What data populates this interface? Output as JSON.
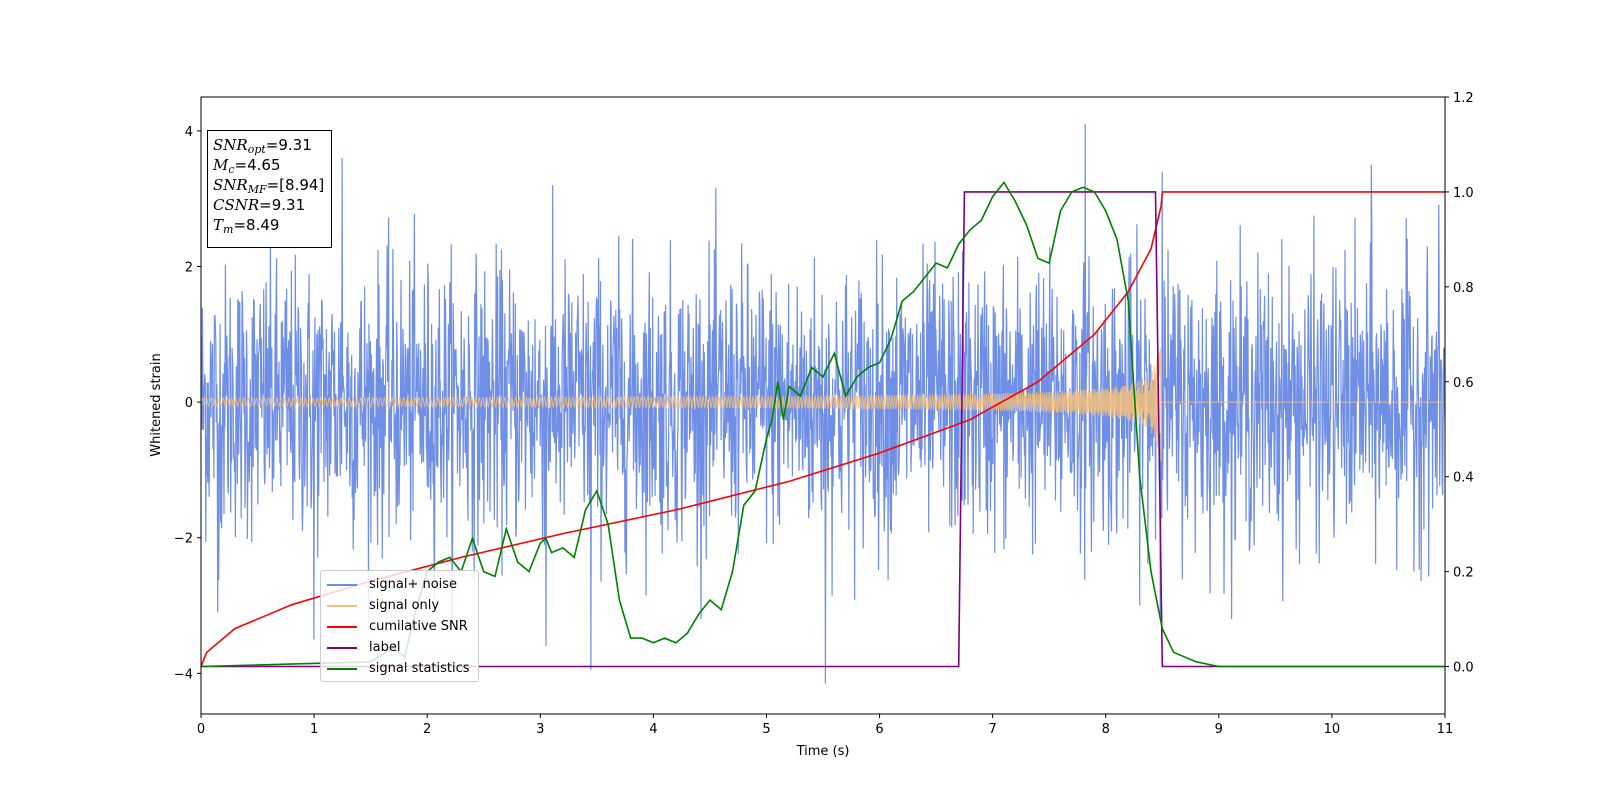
{
  "chart_data": {
    "type": "line",
    "xlabel": "Time (s)",
    "ylabel": "Whitened strain",
    "x_range": [
      0,
      11
    ],
    "y_range_left": [
      -4.6,
      4.5
    ],
    "y_range_right": [
      -0.1,
      1.2
    ],
    "x_ticks": [
      "0",
      "1",
      "2",
      "3",
      "4",
      "5",
      "6",
      "7",
      "8",
      "9",
      "10",
      "11"
    ],
    "y_ticks_left": [
      "4",
      "2",
      "0",
      "−2",
      "−4"
    ],
    "y_ticks_left_values": [
      4,
      2,
      0,
      -2,
      -4
    ],
    "y_ticks_right": [
      "1.2",
      "1.0",
      "0.8",
      "0.6",
      "0.4",
      "0.2",
      "0.0"
    ],
    "y_ticks_right_values": [
      1.2,
      1.0,
      0.8,
      0.6,
      0.4,
      0.2,
      0.0
    ],
    "grid": false,
    "legend_position": "lower-left",
    "series": [
      {
        "name": "signal+ noise",
        "axis": "left",
        "color": "#6f8ee6",
        "style": "noise",
        "noise_std": 1.0,
        "t_start": 0,
        "t_end": 11,
        "spikes": [
          [
            1.25,
            3.6
          ],
          [
            3.45,
            3.95
          ],
          [
            3.45,
            -3.95
          ],
          [
            5.52,
            -4.15
          ],
          [
            7.82,
            4.1
          ],
          [
            8.5,
            3.4
          ],
          [
            10.35,
            3.5
          ],
          [
            1.0,
            -3.5
          ],
          [
            0.15,
            -3.1
          ],
          [
            3.05,
            -3.6
          ]
        ]
      },
      {
        "name": "signal only",
        "axis": "left",
        "color": "#f5bf7a",
        "style": "chirp",
        "t_coalescence": 8.49,
        "amplitude_start": 0.06,
        "amplitude_end": 0.9
      },
      {
        "name": "cumilative SNR",
        "axis": "right",
        "color": "#ff0000",
        "x": [
          0,
          0.05,
          0.3,
          0.8,
          1.5,
          2.3,
          3.2,
          4.2,
          5.2,
          6.0,
          6.8,
          7.4,
          7.9,
          8.2,
          8.4,
          8.49,
          8.5,
          11
        ],
        "values": [
          0.0,
          0.03,
          0.08,
          0.13,
          0.18,
          0.23,
          0.28,
          0.33,
          0.39,
          0.45,
          0.52,
          0.6,
          0.7,
          0.79,
          0.88,
          0.97,
          1.0,
          1.0
        ]
      },
      {
        "name": "label",
        "axis": "right",
        "color": "#800080",
        "x": [
          0,
          6.7,
          6.75,
          8.44,
          8.5,
          11
        ],
        "values": [
          0,
          0,
          1,
          1,
          0,
          0
        ]
      },
      {
        "name": "signal statistics",
        "axis": "right",
        "color": "#008000",
        "x": [
          0,
          1.5,
          1.7,
          1.8,
          1.9,
          2.0,
          2.1,
          2.2,
          2.3,
          2.4,
          2.5,
          2.6,
          2.7,
          2.8,
          2.9,
          3.0,
          3.05,
          3.1,
          3.2,
          3.3,
          3.4,
          3.5,
          3.6,
          3.7,
          3.8,
          3.9,
          4.0,
          4.1,
          4.2,
          4.3,
          4.4,
          4.5,
          4.6,
          4.7,
          4.8,
          4.9,
          5.0,
          5.05,
          5.1,
          5.15,
          5.2,
          5.3,
          5.4,
          5.5,
          5.6,
          5.7,
          5.8,
          5.9,
          6.0,
          6.1,
          6.2,
          6.3,
          6.4,
          6.5,
          6.6,
          6.7,
          6.8,
          6.9,
          7.0,
          7.1,
          7.2,
          7.3,
          7.4,
          7.5,
          7.6,
          7.7,
          7.8,
          7.9,
          8.0,
          8.1,
          8.2,
          8.3,
          8.4,
          8.5,
          8.6,
          8.8,
          9.0,
          11
        ],
        "values": [
          0.0,
          0.01,
          0.04,
          0.02,
          0.12,
          0.2,
          0.22,
          0.23,
          0.2,
          0.27,
          0.2,
          0.19,
          0.29,
          0.22,
          0.2,
          0.26,
          0.27,
          0.24,
          0.25,
          0.23,
          0.33,
          0.37,
          0.3,
          0.14,
          0.06,
          0.06,
          0.05,
          0.06,
          0.05,
          0.07,
          0.11,
          0.14,
          0.12,
          0.2,
          0.34,
          0.37,
          0.48,
          0.52,
          0.6,
          0.52,
          0.59,
          0.57,
          0.63,
          0.61,
          0.66,
          0.57,
          0.61,
          0.63,
          0.64,
          0.69,
          0.77,
          0.79,
          0.82,
          0.85,
          0.84,
          0.89,
          0.92,
          0.94,
          0.99,
          1.02,
          0.98,
          0.93,
          0.86,
          0.85,
          0.96,
          1.0,
          1.01,
          1.0,
          0.96,
          0.9,
          0.77,
          0.4,
          0.2,
          0.08,
          0.03,
          0.01,
          0.0,
          0.0
        ]
      }
    ]
  },
  "infobox": {
    "snr_opt_sym": "SNR",
    "snr_opt_sub": "opt",
    "snr_opt_val": "=9.31",
    "mc_sym": "M",
    "mc_sub": "c",
    "mc_val": "=4.65",
    "snr_mf_sym": "SNR",
    "snr_mf_sub": "MF",
    "snr_mf_val": "=[8.94]",
    "csnr_sym": "CSNR",
    "csnr_val": "=9.31",
    "tm_sym": "T",
    "tm_sub": "m",
    "tm_val": "=8.49"
  }
}
